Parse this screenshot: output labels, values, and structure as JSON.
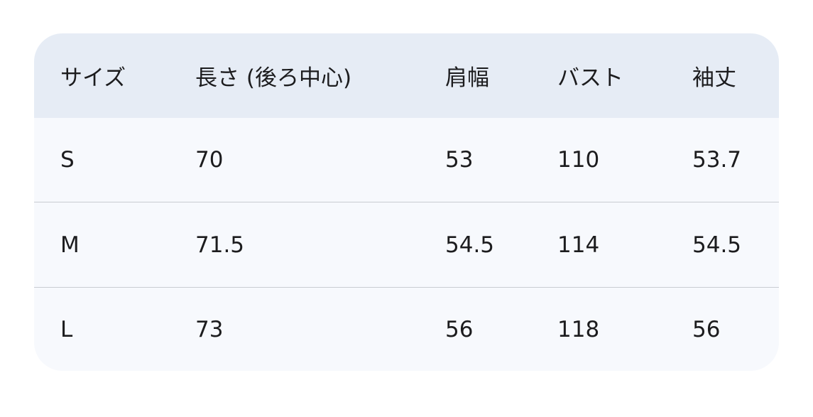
{
  "table": {
    "headers": [
      "サイズ",
      "長さ (後ろ中心)",
      "肩幅",
      "バスト",
      "袖丈"
    ],
    "rows": [
      [
        "S",
        "70",
        "53",
        "110",
        "53.7"
      ],
      [
        "M",
        "71.5",
        "54.5",
        "114",
        "54.5"
      ],
      [
        "L",
        "73",
        "56",
        "118",
        "56"
      ]
    ]
  },
  "colors": {
    "header_bg": "#e6ecf5",
    "row_bg": "#f7f9fd",
    "divider": "#c9ccd2"
  }
}
